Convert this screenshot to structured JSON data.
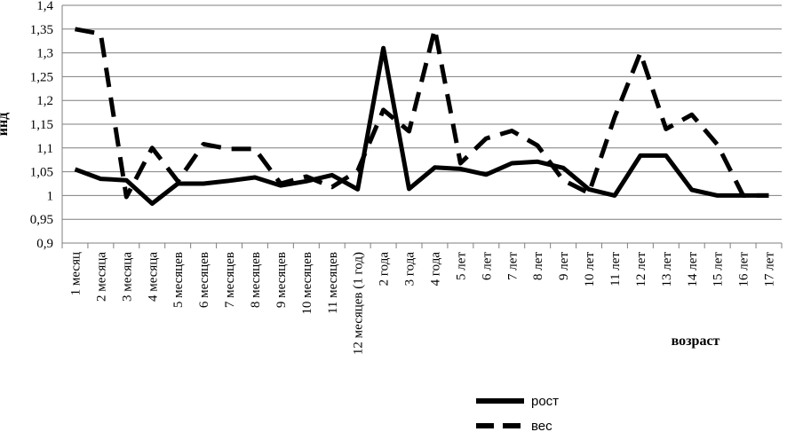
{
  "chart_data": {
    "type": "line",
    "xlabel": "возраст",
    "ylabel": "инд",
    "ylim": [
      0.9,
      1.4
    ],
    "yticks": [
      "0,9",
      "0,95",
      "1",
      "1,05",
      "1,1",
      "1,15",
      "1,2",
      "1,25",
      "1,3",
      "1,35",
      "1,4"
    ],
    "grid": "horizontal",
    "legend_position": "bottom-right",
    "categories": [
      "1 месяц",
      "2 месяца",
      "3 месяца",
      "4 месяца",
      "5 месяцев",
      "6 месяцев",
      "7 месяцев",
      "8 месяцев",
      "9 месяцев",
      "10 месяцев",
      "11 месяцев",
      "12 месяцев (1 год)",
      "2 года",
      "3 года",
      "4 года",
      "5 лет",
      "6 лет",
      "7 лет",
      "8 лет",
      "9 лет",
      "10 лет",
      "11 лет",
      "12 лет",
      "13 лет",
      "14 лет",
      "15 лет",
      "16 лет",
      "17 лет"
    ],
    "series": [
      {
        "name": "рост",
        "style": "solid",
        "color": "#000000",
        "values": [
          1.055,
          1.035,
          1.032,
          0.983,
          1.025,
          1.025,
          1.031,
          1.038,
          1.021,
          1.03,
          1.043,
          1.013,
          1.31,
          1.014,
          1.059,
          1.056,
          1.044,
          1.068,
          1.071,
          1.058,
          1.013,
          1.0,
          1.084,
          1.084,
          1.012,
          1.0,
          1.0,
          1.0
        ]
      },
      {
        "name": "вес",
        "style": "dashed",
        "color": "#000000",
        "values": [
          1.35,
          1.34,
          0.997,
          1.1,
          1.03,
          1.108,
          1.098,
          1.098,
          1.025,
          1.04,
          1.018,
          1.052,
          1.18,
          1.135,
          1.35,
          1.068,
          1.12,
          1.136,
          1.105,
          1.032,
          1.005,
          1.165,
          1.3,
          1.14,
          1.17,
          1.107,
          1.0,
          1.0
        ]
      }
    ]
  }
}
